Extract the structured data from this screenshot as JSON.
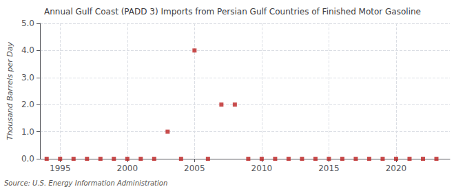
{
  "chart_data": {
    "type": "scatter",
    "title": "Annual Gulf Coast (PADD 3) Imports from Persian Gulf Countries of Finished Motor Gasoline",
    "ylabel": "Thousand Barrels per Day",
    "annotation": "Source: U.S. Energy Information Administration",
    "x": [
      1994,
      1995,
      1996,
      1997,
      1998,
      1999,
      2000,
      2001,
      2002,
      2003,
      2004,
      2005,
      2006,
      2007,
      2008,
      2009,
      2010,
      2011,
      2012,
      2013,
      2014,
      2015,
      2016,
      2017,
      2018,
      2019,
      2020,
      2021,
      2022,
      2023
    ],
    "values": [
      0,
      0,
      0,
      0,
      0,
      0,
      0,
      0,
      0,
      1,
      0,
      4,
      0,
      2,
      2,
      0,
      0,
      0,
      0,
      0,
      0,
      0,
      0,
      0,
      0,
      0,
      0,
      0,
      0,
      0
    ],
    "color": "#bb2222",
    "marker": "square",
    "xlim": [
      1993.5,
      2024
    ],
    "ylim": [
      0.0,
      5.0
    ],
    "xticks": [
      1995,
      2000,
      2005,
      2010,
      2015,
      2020
    ],
    "yticks": [
      {
        "value": 0,
        "label": "0.0"
      },
      {
        "value": 1,
        "label": "1.0"
      },
      {
        "value": 2,
        "label": "2.0"
      },
      {
        "value": 3,
        "label": "3.0"
      },
      {
        "value": 4,
        "label": "4.0"
      },
      {
        "value": 5,
        "label": "5.0"
      }
    ],
    "grid": true
  }
}
